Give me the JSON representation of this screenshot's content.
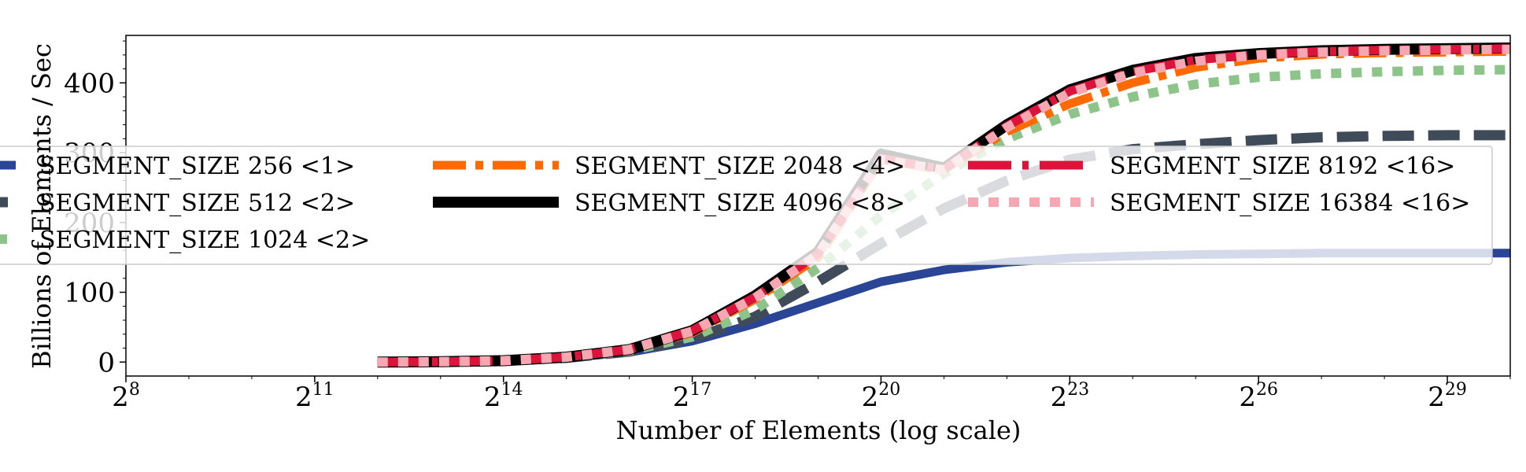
{
  "chart_data": {
    "type": "line",
    "xlabel": "Number of Elements (log scale)",
    "ylabel": "Billions of Elements / Sec",
    "x_scale": "log2",
    "x_ticks": [
      {
        "base": "2",
        "exp": "8"
      },
      {
        "base": "2",
        "exp": "11"
      },
      {
        "base": "2",
        "exp": "14"
      },
      {
        "base": "2",
        "exp": "17"
      },
      {
        "base": "2",
        "exp": "20"
      },
      {
        "base": "2",
        "exp": "23"
      },
      {
        "base": "2",
        "exp": "26"
      },
      {
        "base": "2",
        "exp": "29"
      }
    ],
    "y_ticks": [
      "0",
      "100",
      "200",
      "300",
      "400"
    ],
    "xlim": [
      256,
      1073741824
    ],
    "ylim": [
      -20,
      468
    ],
    "legend_position": "center",
    "x": [
      4096,
      8192,
      16384,
      32768,
      65536,
      131072,
      262144,
      524288,
      1048576,
      2097152,
      4194304,
      8388608,
      16777216,
      33554432,
      67108864,
      134217728,
      268435456,
      536870912,
      1073741824
    ],
    "series": [
      {
        "name": "SEGMENT_SIZE 256 <1>",
        "color": "#2b4596",
        "dash": "solid",
        "width": 11,
        "values": [
          0,
          0.5,
          2,
          6,
          14,
          30,
          55,
          85,
          115,
          132,
          143,
          149,
          152,
          154,
          155,
          156,
          156,
          156,
          156
        ]
      },
      {
        "name": "SEGMENT_SIZE 512 <2>",
        "color": "#404b5a",
        "dash": "dashed",
        "width": 13,
        "values": [
          0,
          0.5,
          2,
          6,
          15,
          33,
          65,
          115,
          170,
          220,
          260,
          290,
          305,
          312,
          318,
          322,
          324,
          325,
          325
        ]
      },
      {
        "name": "SEGMENT_SIZE 1024 <2>",
        "color": "#8cc489",
        "dash": "dotted",
        "width": 12,
        "values": [
          0,
          0.5,
          2,
          6,
          16,
          36,
          75,
          135,
          210,
          270,
          320,
          355,
          380,
          398,
          408,
          413,
          416,
          418,
          419
        ]
      },
      {
        "name": "SEGMENT_SIZE 2048 <4>",
        "color": "#ff6a00",
        "dash": "dashdot",
        "width": 11,
        "values": [
          0,
          0.5,
          2,
          6,
          17,
          42,
          90,
          150,
          290,
          275,
          330,
          370,
          400,
          422,
          435,
          441,
          443,
          444,
          445
        ]
      },
      {
        "name": "SEGMENT_SIZE 4096 <8>",
        "color": "#000000",
        "dash": "solid",
        "width": 14,
        "values": [
          0,
          0.5,
          2,
          7,
          18,
          45,
          95,
          158,
          298,
          278,
          340,
          390,
          418,
          435,
          442,
          446,
          448,
          449,
          450
        ]
      },
      {
        "name": "SEGMENT_SIZE 8192 <16>",
        "color": "#dc143c",
        "dash": "longdash",
        "width": 11,
        "values": [
          0,
          0.5,
          2,
          7,
          18,
          45,
          93,
          155,
          292,
          276,
          338,
          388,
          416,
          433,
          441,
          445,
          447,
          448,
          449
        ]
      },
      {
        "name": "SEGMENT_SIZE 16384 <16>",
        "color": "#f7a7b1",
        "dash": "dotted",
        "width": 12,
        "values": [
          0,
          0.5,
          2,
          7,
          18,
          44,
          92,
          154,
          290,
          275,
          336,
          386,
          414,
          431,
          440,
          444,
          446,
          447,
          448
        ]
      }
    ]
  }
}
